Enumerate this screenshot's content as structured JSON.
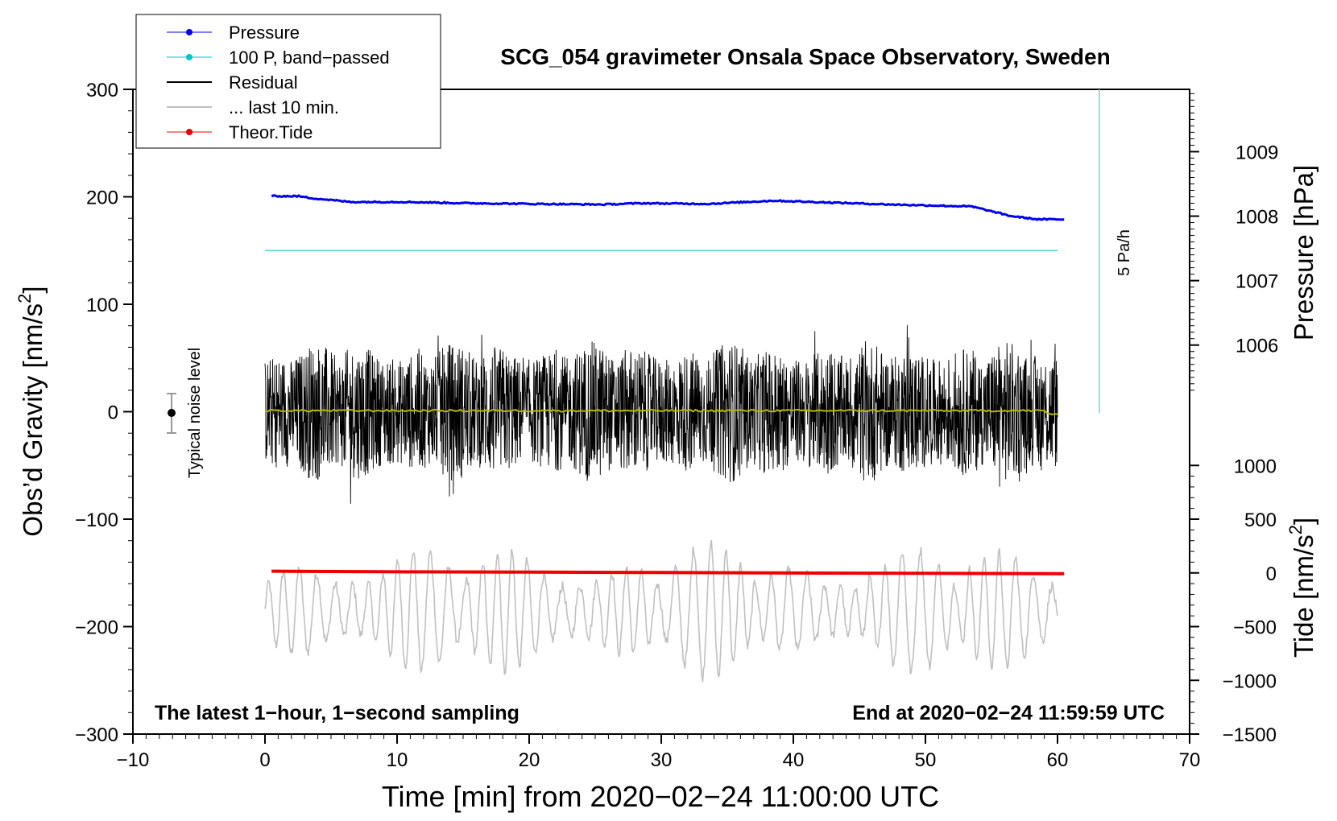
{
  "chart_data": {
    "type": "line",
    "title": "SCG_054 gravimeter Onsala Space Observatory, Sweden",
    "xlabel": "Time [min] from 2020−02−24 11:00:00 UTC",
    "ylabel_left_main": "Obs’d Gravity [nm/s",
    "ylabel_left_sup": "2",
    "ylabel_left_close": "]",
    "ylabel_right_pressure": "Pressure [hPa]",
    "ylabel_right_tide_main": "Tide [nm/s",
    "ylabel_right_tide_sup": "2",
    "ylabel_right_tide_close": "]",
    "xlim": [
      -10,
      70
    ],
    "ylim": [
      -300,
      300
    ],
    "x_ticks": [
      -10,
      0,
      10,
      20,
      30,
      40,
      50,
      60,
      70
    ],
    "x_tick_labels": [
      "−10",
      "0",
      "10",
      "20",
      "30",
      "40",
      "50",
      "60",
      "70"
    ],
    "y_ticks": [
      300,
      200,
      100,
      0,
      -100,
      -200,
      -300
    ],
    "y_tick_labels": [
      "300",
      "200",
      "100",
      "0",
      "−100",
      "−200",
      "−300"
    ],
    "pressure_axis": {
      "ticks": [
        1009,
        1008,
        1007,
        1006
      ],
      "tick_labels": [
        "1009",
        "1008",
        "1007",
        "1006"
      ],
      "gravity_per_hPa": 60,
      "ref_hPa": 1008.3,
      "ref_gravity": 200
    },
    "tide_axis": {
      "ticks": [
        1000,
        500,
        0,
        -500,
        -1000,
        -1500
      ],
      "tick_labels": [
        "1000",
        "500",
        "0",
        "−500",
        "−1000",
        "−1500"
      ],
      "gravity_per_unit": 0.1,
      "zero_gravity": -150
    },
    "series": [
      {
        "name": "Pressure",
        "color": "#0000ee",
        "unit": "hPa",
        "x": [
          0,
          2,
          3,
          6,
          10,
          15,
          20,
          25,
          28,
          33,
          38,
          41,
          47,
          53,
          56,
          58,
          60
        ],
        "y": [
          1008.31,
          1008.31,
          1008.28,
          1008.22,
          1008.22,
          1008.2,
          1008.19,
          1008.18,
          1008.2,
          1008.19,
          1008.24,
          1008.22,
          1008.18,
          1008.15,
          1008.0,
          1007.95,
          1007.95
        ]
      },
      {
        "name": "100 P, band−passed",
        "color": "#00c8c8",
        "constant_gravity": 150
      },
      {
        "name": "Residual",
        "color": "#000000",
        "envelope": 55
      },
      {
        "name": "... last 10 min.",
        "color": "#c0c0c0",
        "mean_gravity": -185,
        "amplitude": 45
      },
      {
        "name": "Theor.Tide",
        "color": "#ee0000",
        "unit": "nm/s2",
        "x": [
          0.5,
          10,
          20,
          30,
          40,
          50,
          60.5
        ],
        "y": [
          16,
          10,
          7,
          3,
          -1,
          -4,
          -7
        ]
      }
    ],
    "legend": {
      "position": "top-left",
      "entries": [
        "Pressure",
        "100 P, band−passed",
        "Residual",
        "... last 10 min.",
        "Theor.Tide"
      ]
    },
    "annotations": {
      "bottom_left": "The latest 1−hour, 1−second sampling",
      "bottom_right": "End at 2020−02−24 11:59:59 UTC",
      "noise": "Typical noise level",
      "rate": "5 Pa/h"
    }
  }
}
